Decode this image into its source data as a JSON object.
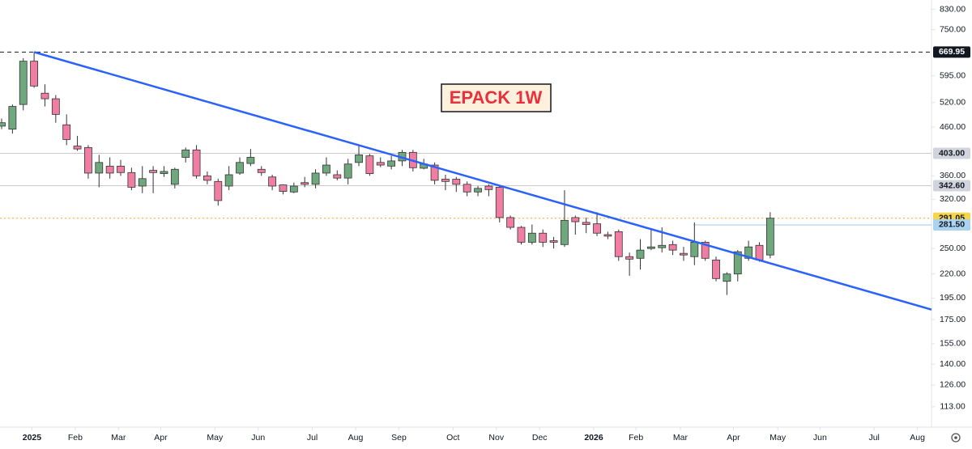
{
  "chart_data": {
    "type": "candlestick",
    "title": "EPACK 1W",
    "log_scale": true,
    "grid": false,
    "up_color": "#6fa87c",
    "down_color": "#f07ea3",
    "wick_color": "#333333",
    "ylim": [
      102,
      870
    ],
    "yticks": [
      {
        "value": 830,
        "label": "830.00"
      },
      {
        "value": 750,
        "label": "750.00"
      },
      {
        "value": 595,
        "label": "595.00"
      },
      {
        "value": 520,
        "label": "520.00"
      },
      {
        "value": 460,
        "label": "460.00"
      },
      {
        "value": 360,
        "label": "360.00"
      },
      {
        "value": 320,
        "label": "320.00"
      },
      {
        "value": 250,
        "label": "250.00"
      },
      {
        "value": 220,
        "label": "220.00"
      },
      {
        "value": 195,
        "label": "195.00"
      },
      {
        "value": 175,
        "label": "175.00"
      },
      {
        "value": 155,
        "label": "155.00"
      },
      {
        "value": 140,
        "label": "140.00"
      },
      {
        "value": 126,
        "label": "126.00"
      },
      {
        "value": 113,
        "label": "113.00"
      }
    ],
    "xlim": [
      -0.15,
      85.9
    ],
    "xticks": [
      {
        "value": 2.8,
        "label": "2025"
      },
      {
        "value": 6.8,
        "label": "Feb"
      },
      {
        "value": 10.8,
        "label": "Mar"
      },
      {
        "value": 14.7,
        "label": "Apr"
      },
      {
        "value": 19.7,
        "label": "May"
      },
      {
        "value": 23.7,
        "label": "Jun"
      },
      {
        "value": 28.7,
        "label": "Jul"
      },
      {
        "value": 32.7,
        "label": "Aug"
      },
      {
        "value": 36.7,
        "label": "Sep"
      },
      {
        "value": 41.7,
        "label": "Oct"
      },
      {
        "value": 45.7,
        "label": "Nov"
      },
      {
        "value": 49.7,
        "label": "Dec"
      },
      {
        "value": 54.7,
        "label": "2026"
      },
      {
        "value": 58.6,
        "label": "Feb"
      },
      {
        "value": 62.7,
        "label": "Mar"
      },
      {
        "value": 67.6,
        "label": "Apr"
      },
      {
        "value": 71.7,
        "label": "May"
      },
      {
        "value": 75.6,
        "label": "Jun"
      },
      {
        "value": 80.6,
        "label": "Jul"
      },
      {
        "value": 84.6,
        "label": "Aug"
      }
    ],
    "x": [
      0,
      1,
      2,
      3,
      4,
      5,
      6,
      7,
      8,
      9,
      10,
      11,
      12,
      13,
      14,
      15,
      16,
      17,
      18,
      19,
      20,
      21,
      22,
      23,
      24,
      25,
      26,
      27,
      28,
      29,
      30,
      31,
      32,
      33,
      34,
      35,
      36,
      37,
      38,
      39,
      40,
      41,
      42,
      43,
      44,
      45,
      46,
      47,
      48,
      49,
      50,
      51,
      52,
      53,
      54,
      55,
      56,
      57,
      58,
      59,
      60,
      61,
      62,
      63,
      64,
      65,
      66,
      67,
      68,
      69,
      70,
      71
    ],
    "open": [
      462,
      455,
      515,
      640,
      545,
      530,
      465,
      418,
      415,
      365,
      378,
      378,
      366,
      342,
      370,
      364,
      345,
      395,
      410,
      360,
      350,
      342,
      365,
      383,
      372,
      358,
      344,
      332,
      348,
      345,
      365,
      362,
      356,
      385,
      398,
      385,
      378,
      388,
      405,
      374,
      380,
      354,
      354,
      345,
      332,
      342,
      340,
      292,
      278,
      258,
      270,
      260,
      255,
      292,
      285,
      283,
      268,
      272,
      240,
      238,
      250,
      251,
      255,
      244,
      240,
      258,
      236,
      212,
      220,
      238,
      254,
      242
    ],
    "high": [
      480,
      515,
      650,
      669.95,
      570,
      540,
      490,
      440,
      420,
      400,
      395,
      390,
      375,
      378,
      378,
      378,
      375,
      415,
      420,
      368,
      355,
      378,
      395,
      412,
      378,
      362,
      345,
      348,
      358,
      372,
      395,
      370,
      392,
      420,
      402,
      395,
      398,
      410,
      410,
      392,
      385,
      362,
      358,
      350,
      342,
      345,
      342,
      295,
      280,
      282,
      275,
      265,
      335,
      295,
      292,
      300,
      272,
      275,
      245,
      262,
      275,
      278,
      260,
      252,
      285,
      260,
      240,
      222,
      248,
      260,
      258,
      300
    ],
    "low": [
      455,
      445,
      500,
      560,
      510,
      470,
      420,
      408,
      355,
      340,
      355,
      360,
      335,
      330,
      330,
      358,
      338,
      385,
      355,
      345,
      310,
      335,
      362,
      378,
      360,
      335,
      328,
      330,
      340,
      338,
      360,
      352,
      345,
      378,
      360,
      376,
      372,
      378,
      368,
      372,
      345,
      335,
      332,
      325,
      325,
      325,
      285,
      275,
      255,
      255,
      252,
      250,
      252,
      268,
      270,
      266,
      262,
      235,
      218,
      225,
      248,
      245,
      242,
      235,
      230,
      235,
      212,
      198,
      212,
      235,
      234,
      238
    ],
    "close": [
      470,
      510,
      640,
      565,
      530,
      490,
      432,
      412,
      365,
      385,
      365,
      366,
      340,
      355,
      366,
      368,
      372,
      410,
      360,
      352,
      318,
      362,
      385,
      395,
      366,
      342,
      333,
      342,
      345,
      365,
      380,
      356,
      382,
      400,
      364,
      380,
      388,
      405,
      375,
      382,
      352,
      350,
      345,
      332,
      338,
      336,
      292,
      278,
      258,
      270,
      258,
      258,
      288,
      286,
      282,
      270,
      266,
      240,
      237,
      248,
      252,
      254,
      248,
      242,
      258,
      238,
      215,
      220,
      246,
      252,
      236,
      291.05
    ],
    "trendline": {
      "color": "#2962ff",
      "x": [
        3,
        85.9
      ],
      "y": [
        669.95,
        184
      ]
    },
    "levels": [
      {
        "value": 669.95,
        "label": "669.95",
        "style": "dashed",
        "color": "#131722",
        "label_bg": "#131722",
        "label_color": "#ffffff",
        "x_start": -0.15
      },
      {
        "value": 403,
        "label": "403.00",
        "style": "solid",
        "color": "#c8cad0",
        "label_bg": "#d1d4dc",
        "label_color": "#131722",
        "x_start": -0.15
      },
      {
        "value": 342.6,
        "label": "342.60",
        "style": "solid",
        "color": "#c8cad0",
        "label_bg": "#d1d4dc",
        "label_color": "#131722",
        "x_start": -0.15
      },
      {
        "value": 291.05,
        "label": "291.05",
        "style": "dotted",
        "color": "#f5a623",
        "label_bg": "#f7d54a",
        "label_color": "#131722",
        "x_start": -0.15
      },
      {
        "value": 281.5,
        "label": "281.50",
        "style": "solid",
        "color": "#9cc9e8",
        "label_bg": "#a9d3f0",
        "label_color": "#131722",
        "x_start": 63.9
      }
    ]
  }
}
